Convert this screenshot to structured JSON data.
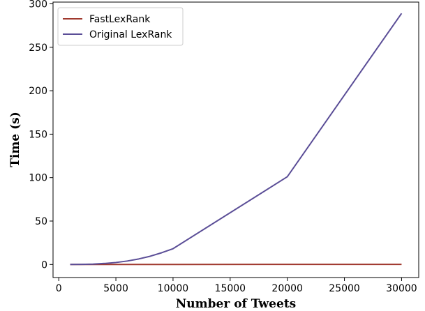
{
  "chart_data": {
    "type": "line",
    "title": "",
    "xlabel": "Number of Tweets",
    "ylabel": "Time (s)",
    "xlim": [
      -500,
      31500
    ],
    "ylim": [
      -15,
      302
    ],
    "xticks": [
      0,
      5000,
      10000,
      15000,
      20000,
      25000,
      30000
    ],
    "xtick_labels": [
      "0",
      "5000",
      "10000",
      "15000",
      "20000",
      "25000",
      "30000"
    ],
    "yticks": [
      0,
      50,
      100,
      150,
      200,
      250,
      300
    ],
    "ytick_labels": [
      "0",
      "50",
      "100",
      "150",
      "200",
      "250",
      "300"
    ],
    "grid": false,
    "legend_position": "upper-left",
    "series": [
      {
        "name": "FastLexRank",
        "color": "#a0392e",
        "x": [
          1000,
          2000,
          3000,
          4000,
          5000,
          6000,
          7000,
          8000,
          9000,
          10000,
          20000,
          30000
        ],
        "y": [
          0.05,
          0.05,
          0.05,
          0.05,
          0.05,
          0.05,
          0.06,
          0.06,
          0.06,
          0.07,
          0.1,
          0.15
        ]
      },
      {
        "name": "Original LexRank",
        "color": "#5b4e97",
        "x": [
          1000,
          2000,
          3000,
          4000,
          5000,
          6000,
          7000,
          8000,
          9000,
          10000,
          20000,
          30000
        ],
        "y": [
          0.02,
          0.15,
          0.5,
          1.2,
          2.3,
          4.0,
          6.4,
          9.5,
          13.5,
          18.2,
          101.0,
          289.0
        ]
      }
    ]
  }
}
